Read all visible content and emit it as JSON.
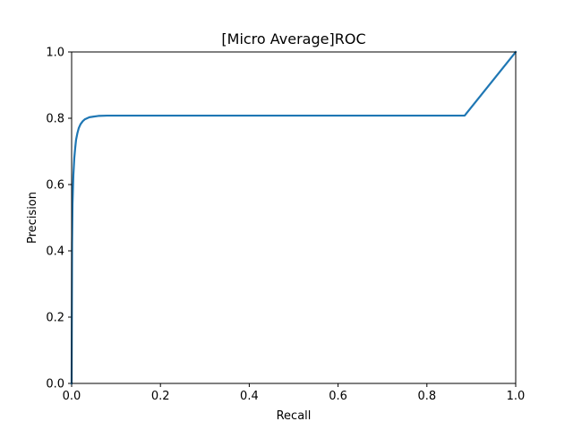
{
  "chart_data": {
    "type": "line",
    "title": "[Micro Average]ROC",
    "xlabel": "Recall",
    "ylabel": "Precision",
    "xlim": [
      0.0,
      1.0
    ],
    "ylim": [
      0.0,
      1.0
    ],
    "grid": false,
    "legend": "none",
    "x_ticks": [
      0.0,
      0.2,
      0.4,
      0.6,
      0.8,
      1.0
    ],
    "y_ticks": [
      0.0,
      0.2,
      0.4,
      0.6,
      0.8,
      1.0
    ],
    "x_tick_labels": [
      "0.0",
      "0.2",
      "0.4",
      "0.6",
      "0.8",
      "1.0"
    ],
    "y_tick_labels": [
      "0.0",
      "0.2",
      "0.4",
      "0.6",
      "0.8",
      "1.0"
    ],
    "series": [
      {
        "color": "#1f77b4",
        "x": [
          0.0,
          0.001,
          0.002,
          0.004,
          0.006,
          0.008,
          0.01,
          0.013,
          0.016,
          0.02,
          0.025,
          0.03,
          0.035,
          0.04,
          0.05,
          0.06,
          0.08,
          0.1,
          0.2,
          0.4,
          0.6,
          0.8,
          0.885,
          1.0
        ],
        "y": [
          0.0,
          0.42,
          0.54,
          0.63,
          0.68,
          0.71,
          0.735,
          0.755,
          0.77,
          0.782,
          0.791,
          0.797,
          0.8,
          0.803,
          0.805,
          0.807,
          0.808,
          0.808,
          0.808,
          0.808,
          0.808,
          0.808,
          0.808,
          1.0
        ]
      }
    ]
  }
}
